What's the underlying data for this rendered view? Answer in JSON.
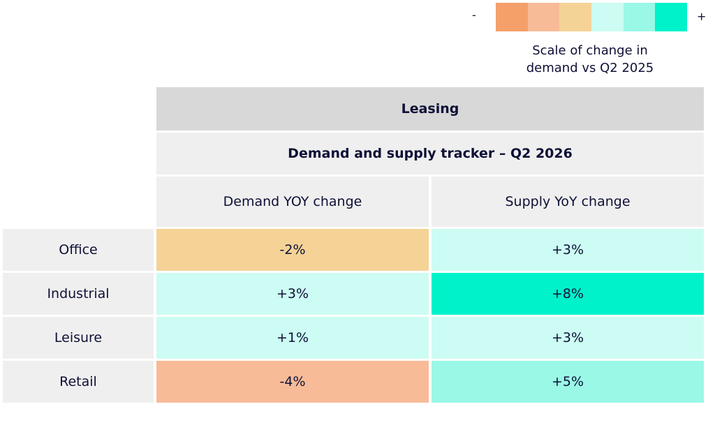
{
  "legend": {
    "minus_label": "-",
    "plus_label": "+",
    "colors": [
      "#f5a06b",
      "#f8bb98",
      "#f5d397",
      "#ccfcf3",
      "#9af8e6",
      "#00f2cb"
    ],
    "caption_line1": "Scale of change in",
    "caption_line2": "demand vs Q2 2025"
  },
  "chart_data": {
    "type": "table",
    "title": "Leasing",
    "subtitle": "Demand and supply tracker – Q2 2026",
    "columns": [
      "Demand YOY change",
      "Supply YoY change"
    ],
    "rows": [
      {
        "label": "Office",
        "demand": "-2%",
        "supply": "+3%",
        "demand_value": -2,
        "supply_value": 3,
        "demand_color": "#f5d397",
        "supply_color": "#ccfcf3"
      },
      {
        "label": "Industrial",
        "demand": "+3%",
        "supply": "+8%",
        "demand_value": 3,
        "supply_value": 8,
        "demand_color": "#ccfcf3",
        "supply_color": "#00f2cb"
      },
      {
        "label": "Leisure",
        "demand": "+1%",
        "supply": "+3%",
        "demand_value": 1,
        "supply_value": 3,
        "demand_color": "#ccfcf3",
        "supply_color": "#ccfcf3"
      },
      {
        "label": "Retail",
        "demand": "-4%",
        "supply": "+5%",
        "demand_value": -4,
        "supply_value": 5,
        "demand_color": "#f8bb98",
        "supply_color": "#9af8e6"
      }
    ]
  }
}
